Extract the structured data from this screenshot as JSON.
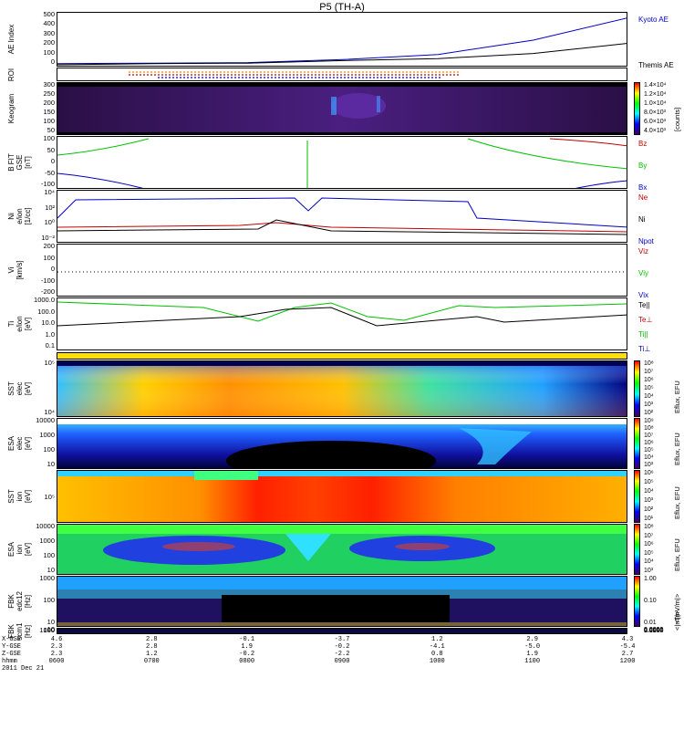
{
  "title": "P5 (TH-A)",
  "panels": {
    "ae": {
      "ylabel": "AE Index",
      "ticks": [
        "500",
        "400",
        "300",
        "200",
        "100",
        "0"
      ],
      "legend": [
        {
          "label": "Kyoto AE",
          "color": "#0000c0"
        },
        {
          "label": "Themis AE",
          "color": "#000000"
        }
      ]
    },
    "roi": {
      "ylabel": "ROI"
    },
    "keogram": {
      "ylabel": "Keogram",
      "ticks": [
        "300",
        "250",
        "200",
        "150",
        "100",
        "50"
      ],
      "cb_ticks": [
        "1.4×10⁴",
        "1.2×10⁴",
        "1.0×10⁴",
        "8.0×10³",
        "6.0×10³",
        "4.0×10³"
      ],
      "cb_name": "[counts]"
    },
    "bfield": {
      "ylabel": "B FIT\nGSE\n[nT]",
      "ticks": [
        "100",
        "50",
        "0",
        "-50",
        "-100"
      ],
      "legend": [
        {
          "label": "Bz",
          "color": "#c00000"
        },
        {
          "label": "By",
          "color": "#00c000"
        },
        {
          "label": "Bx",
          "color": "#0000c0"
        }
      ]
    },
    "density": {
      "ylabel": "Ni\ne/ion\n[1/cc]",
      "ticks": [
        "10⁴",
        "10²",
        "10⁰",
        "10⁻²"
      ],
      "legend": [
        {
          "label": "Ne",
          "color": "#c00000"
        },
        {
          "label": "Ni",
          "color": "#000000"
        },
        {
          "label": "Npot",
          "color": "#0000c0"
        }
      ]
    },
    "velocity": {
      "ylabel": "Vi\n[km/s]",
      "ticks": [
        "200",
        "100",
        "0",
        "-100",
        "-200"
      ],
      "legend": [
        {
          "label": "Viz",
          "color": "#c00000"
        },
        {
          "label": "Viy",
          "color": "#00c000"
        },
        {
          "label": "Vix",
          "color": "#0000c0"
        }
      ]
    },
    "temp": {
      "ylabel": "Ti\ne/ion\n[eV]",
      "ticks": [
        "1000.0",
        "100.0",
        "10.0",
        "1.0",
        "0.1"
      ],
      "legend": [
        {
          "label": "Te||",
          "color": "#000000"
        },
        {
          "label": "Te⊥",
          "color": "#c00000"
        },
        {
          "label": "Ti||",
          "color": "#00c000"
        },
        {
          "label": "Ti⊥",
          "color": "#0000c0"
        }
      ]
    },
    "sst_e": {
      "ylabel": "SST\nelec\n[eV]",
      "ticks": [
        "10⁵",
        "10⁴"
      ],
      "cb_ticks": [
        "10⁸",
        "10⁷",
        "10⁶",
        "10⁵",
        "10⁴",
        "10³",
        "10²"
      ],
      "cb_name": "Eflux, EFU"
    },
    "esa_e": {
      "ylabel": "ESA\nelec\n[eV]",
      "ticks": [
        "10000",
        "1000",
        "100",
        "10"
      ],
      "cb_ticks": [
        "10⁹",
        "10⁸",
        "10⁷",
        "10⁶",
        "10⁵",
        "10⁴",
        "10³"
      ],
      "cb_name": "Eflux, EFU"
    },
    "sst_i": {
      "ylabel": "SST\nion\n[eV]",
      "ticks": [
        "10⁵"
      ],
      "cb_ticks": [
        "10⁶",
        "10⁵",
        "10⁴",
        "10³",
        "10²",
        "10¹"
      ],
      "cb_name": "Eflux, EFU"
    },
    "esa_i": {
      "ylabel": "ESA\nion\n[eV]",
      "ticks": [
        "10000",
        "1000",
        "100",
        "10"
      ],
      "cb_ticks": [
        "10⁸",
        "10⁷",
        "10⁶",
        "10⁵",
        "10⁴",
        "10³"
      ],
      "cb_name": "Eflux, EFU"
    },
    "fbk_e": {
      "ylabel": "FBK\nedc12\n[Hz]",
      "ticks": [
        "1000",
        "100",
        "10"
      ],
      "cb_ticks": [
        "1.00",
        "0.10",
        "0.01"
      ],
      "cb_name": "<|mV/m|>"
    },
    "fbk_b": {
      "ylabel": "FBK\nscm1\n[Hz]",
      "ticks": [
        "1000",
        "100",
        "10"
      ],
      "cb_ticks": [
        "1.0000",
        "0.1000",
        "0.0100",
        "0.0010",
        "0.0001"
      ],
      "cb_name": "<|nT|>"
    }
  },
  "footer": {
    "row_labels": [
      "X-GSE",
      "Y-GSE",
      "Z-GSE",
      "hhmm",
      "2011 Dec 21"
    ],
    "columns": [
      {
        "x": "4.6",
        "y": "2.3",
        "z": "2.3",
        "t": "0600"
      },
      {
        "x": "2.8",
        "y": "2.8",
        "z": "1.2",
        "t": "0700"
      },
      {
        "x": "-0.1",
        "y": "1.9",
        "z": "-0.2",
        "t": "0800"
      },
      {
        "x": "-3.7",
        "y": "-0.2",
        "z": "-2.2",
        "t": "0900"
      },
      {
        "x": "1.2",
        "y": "-4.1",
        "z": "0.8",
        "t": "1000"
      },
      {
        "x": "2.9",
        "y": "-5.0",
        "z": "1.9",
        "t": "1100"
      },
      {
        "x": "4.3",
        "y": "-5.4",
        "z": "2.7",
        "t": "1200"
      }
    ]
  },
  "chart_data": {
    "type": "line",
    "title": "P5 (TH-A)",
    "x": [
      "0600",
      "0700",
      "0800",
      "0900",
      "1000",
      "1100",
      "1200"
    ],
    "xlabel": "hhmm",
    "series": [
      {
        "name": "Kyoto AE",
        "values": [
          20,
          25,
          30,
          60,
          110,
          250,
          470
        ]
      },
      {
        "name": "Themis AE",
        "values": [
          10,
          20,
          25,
          50,
          70,
          120,
          220
        ]
      }
    ],
    "ylabel": "AE Index",
    "ylim": [
      0,
      500
    ]
  }
}
